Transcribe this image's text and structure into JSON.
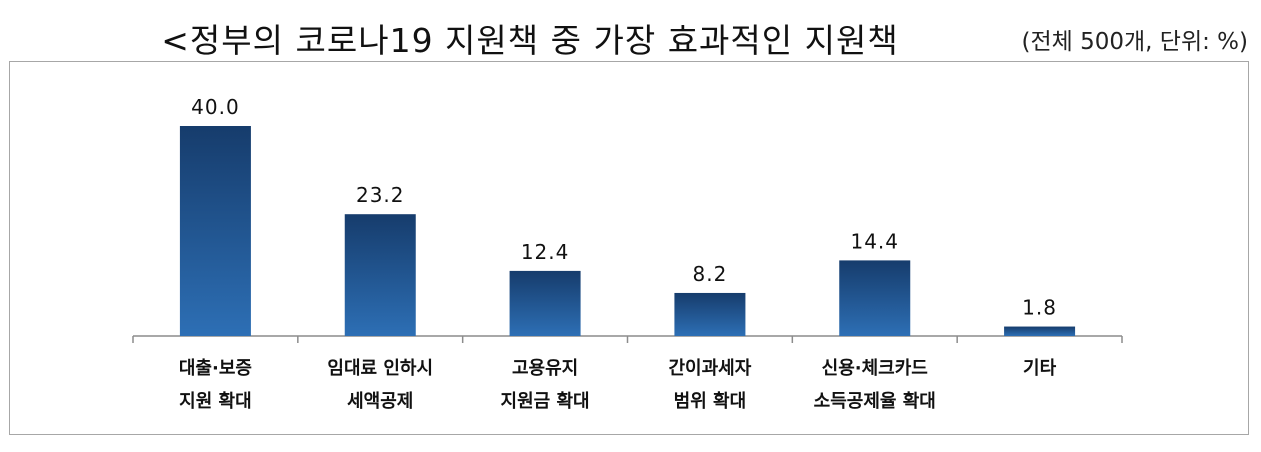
{
  "title": "<정부의 코로나19 지원책 중 가장 효과적인 지원책>",
  "unit_note": "(전체 500개, 단위: %)",
  "chart_data": {
    "type": "bar",
    "title": "<정부의 코로나19 지원책 중 가장 효과적인 지원책>",
    "subtitle": "(전체 500개, 단위: %)",
    "categories": [
      [
        "대출·보증",
        "지원 확대"
      ],
      [
        "임대료 인하시",
        "세액공제"
      ],
      [
        "고용유지",
        "지원금 확대"
      ],
      [
        "간이과세자",
        "범위 확대"
      ],
      [
        "신용·체크카드",
        "소득공제율 확대"
      ],
      [
        "기타"
      ]
    ],
    "values": [
      40.0,
      23.2,
      12.4,
      8.2,
      14.4,
      1.8
    ],
    "value_labels": [
      "40.0",
      "23.2",
      "12.4",
      "8.2",
      "14.4",
      "1.8"
    ],
    "ylim": [
      0,
      40
    ],
    "grid": false,
    "bar_color_top": "#163c6c",
    "bar_color_bottom": "#2d6fb5"
  }
}
